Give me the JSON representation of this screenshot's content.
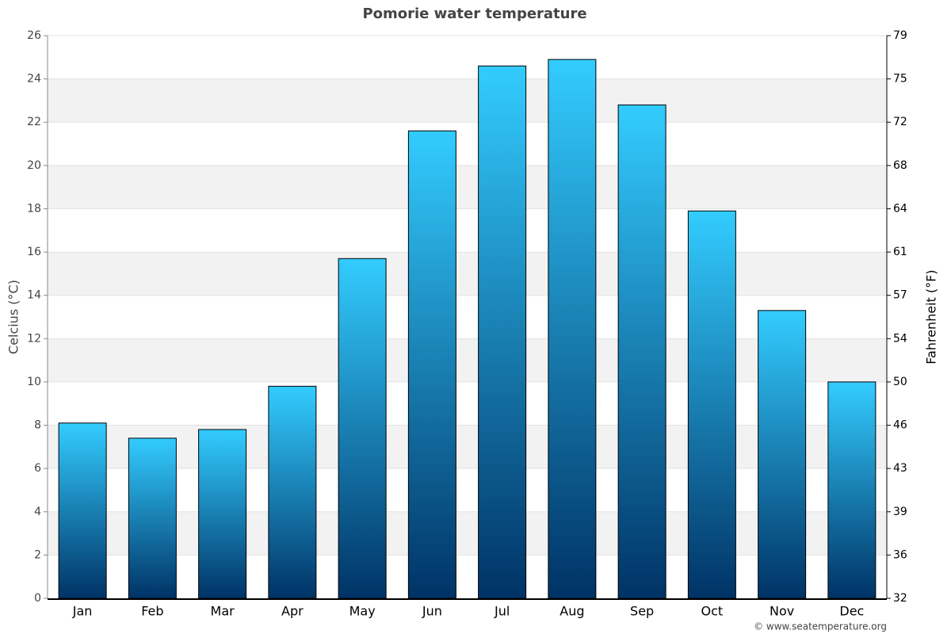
{
  "chart_data": {
    "type": "bar",
    "title": "Pomorie water temperature",
    "y_label": "Celcius (°C)",
    "y2_label": "Fahrenheit (°F)",
    "credit": "© www.seatemperature.org",
    "categories": [
      "Jan",
      "Feb",
      "Mar",
      "Apr",
      "May",
      "Jun",
      "Jul",
      "Aug",
      "Sep",
      "Oct",
      "Nov",
      "Dec"
    ],
    "values": [
      8.1,
      7.4,
      7.8,
      9.8,
      15.7,
      21.6,
      24.6,
      24.9,
      22.8,
      17.9,
      13.3,
      10.0
    ],
    "color": [
      "#33ccff",
      "#003366"
    ],
    "ylim": [
      0,
      26
    ],
    "yticks": [
      0,
      2,
      4,
      6,
      8,
      10,
      12,
      14,
      16,
      18,
      20,
      22,
      24,
      26
    ],
    "y2lim": [
      32,
      78.8
    ],
    "y2ticks": [
      32,
      {
        "value": 35.6,
        "label": "36"
      },
      {
        "value": 39.2,
        "label": "39"
      },
      {
        "value": 42.8,
        "label": "43"
      },
      {
        "value": 46.4,
        "label": "46"
      },
      50,
      {
        "value": 53.6,
        "label": "54"
      },
      {
        "value": 57.2,
        "label": "57"
      },
      {
        "value": 60.8,
        "label": "61"
      },
      {
        "value": 64.4,
        "label": "64"
      },
      68,
      {
        "value": 71.6,
        "label": "72"
      },
      {
        "value": 75.2,
        "label": "75"
      },
      {
        "value": 78.8,
        "label": "79"
      }
    ],
    "grid": true
  }
}
